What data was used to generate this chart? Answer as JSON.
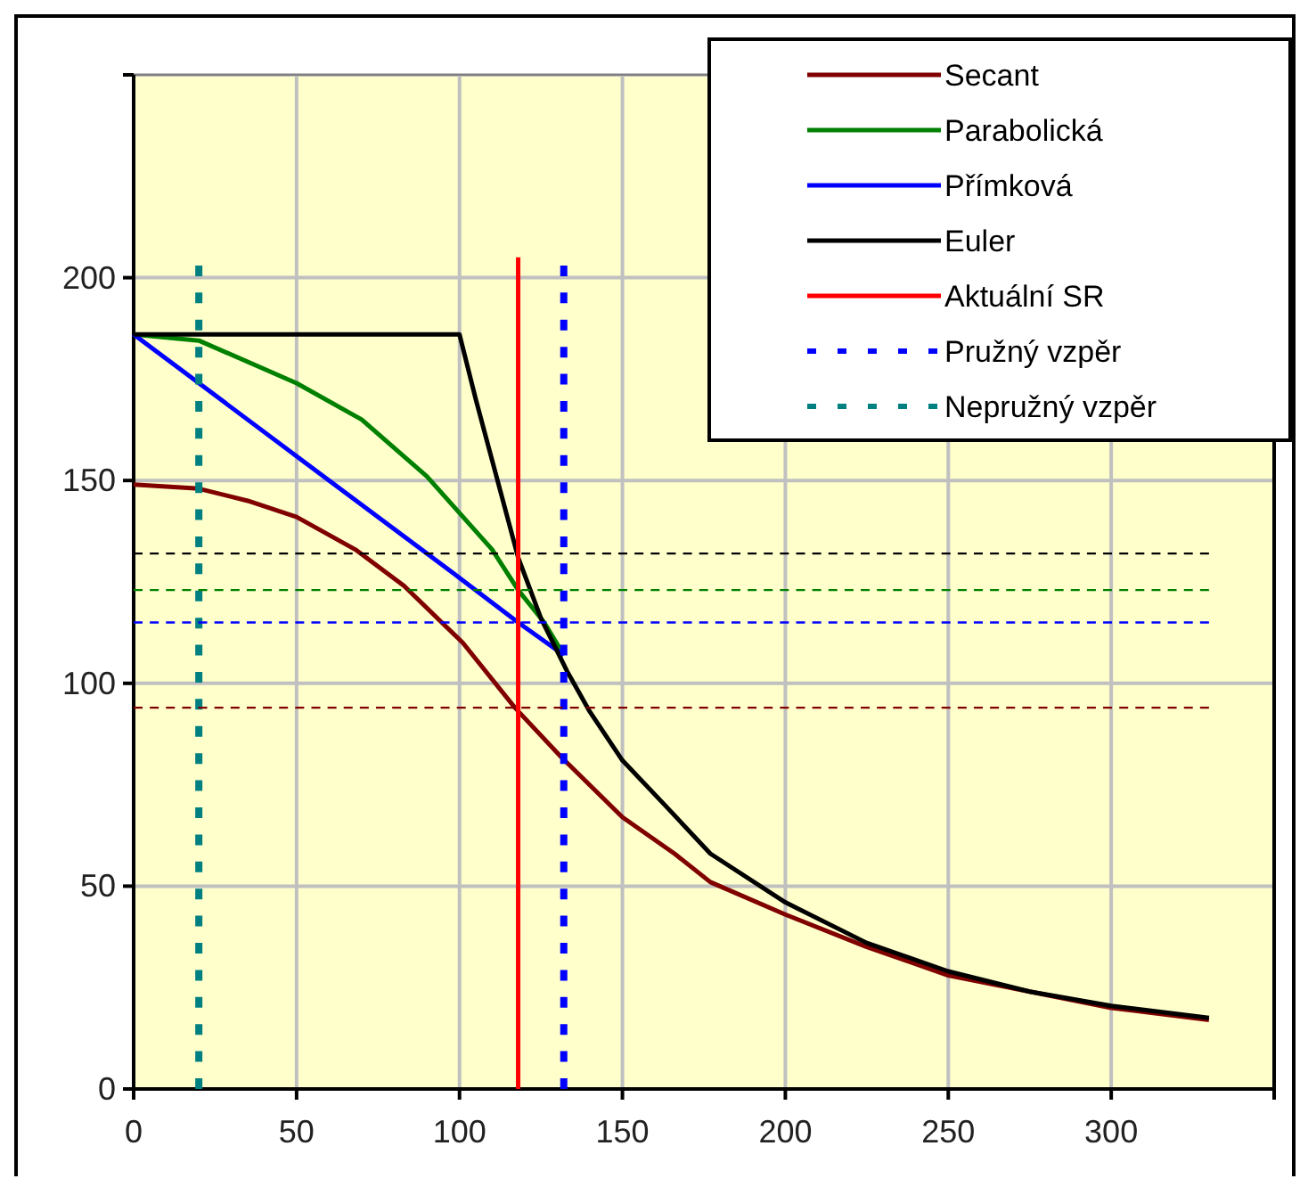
{
  "chart_data": {
    "type": "line",
    "xlim": [
      0,
      350
    ],
    "ylim": [
      0,
      250
    ],
    "xticks": [
      0,
      50,
      100,
      150,
      200,
      250,
      300,
      {
        "value": 350,
        "label": null
      }
    ],
    "yticks": [
      0,
      50,
      100,
      150,
      200,
      {
        "value": 250,
        "label": null
      }
    ],
    "grid": true,
    "legend": "top right",
    "series": [
      {
        "name": "Secant",
        "color": "#800000",
        "line_style": "solid",
        "x": [
          0,
          20,
          35,
          50,
          68,
          83,
          101,
          117,
          131,
          150,
          166,
          177,
          200,
          225,
          250,
          275,
          300,
          330
        ],
        "values": [
          149,
          148,
          145,
          141,
          133,
          124,
          110,
          94,
          82,
          67,
          58,
          51,
          43,
          35,
          28,
          24,
          20,
          17
        ]
      },
      {
        "name": "Parabolická",
        "color": "#008000",
        "line_style": "solid",
        "x": [
          0,
          20,
          50,
          70,
          90,
          100,
          110,
          118,
          126,
          132
        ],
        "values": [
          186,
          184.5,
          174,
          165,
          151,
          142,
          133,
          123,
          115,
          107
        ]
      },
      {
        "name": "Přímková",
        "color": "#0000ff",
        "line_style": "solid",
        "x": [
          0,
          50,
          100,
          118,
          132
        ],
        "values": [
          186,
          156,
          126,
          115,
          107
        ]
      },
      {
        "name": "Euler",
        "color": "#000000",
        "line_style": "solid",
        "x": [
          0,
          100,
          105,
          110,
          118,
          125,
          133,
          140,
          150,
          163,
          177,
          200,
          225,
          250,
          275,
          300,
          330
        ],
        "values": [
          186,
          186,
          170,
          155,
          131,
          116,
          103,
          93,
          81,
          70,
          58,
          46,
          36,
          29,
          24,
          20.5,
          17.5
        ]
      },
      {
        "name": "Aktuální SR",
        "color": "#ff0000",
        "line_style": "solid",
        "x": [
          118,
          118
        ],
        "values": [
          0,
          205
        ]
      },
      {
        "name": "Pružný vzpěr",
        "color": "#0000ff",
        "line_style": "dotted",
        "x": [
          132,
          132
        ],
        "values": [
          0,
          203
        ]
      },
      {
        "name": "Nepružný vzpěr",
        "color": "#008080",
        "line_style": "dotted",
        "x": [
          20,
          20
        ],
        "values": [
          0,
          203
        ]
      },
      {
        "color": "#000000",
        "line_style": "dashed",
        "x": [
          0,
          330
        ],
        "values": [
          132,
          132
        ]
      },
      {
        "color": "#008000",
        "line_style": "dashed",
        "x": [
          0,
          330
        ],
        "values": [
          123,
          123
        ]
      },
      {
        "color": "#0000ff",
        "line_style": "dashed",
        "x": [
          0,
          330
        ],
        "values": [
          115,
          115
        ]
      },
      {
        "color": "#800000",
        "line_style": "dashed",
        "x": [
          0,
          330
        ],
        "values": [
          94,
          94
        ]
      }
    ]
  }
}
